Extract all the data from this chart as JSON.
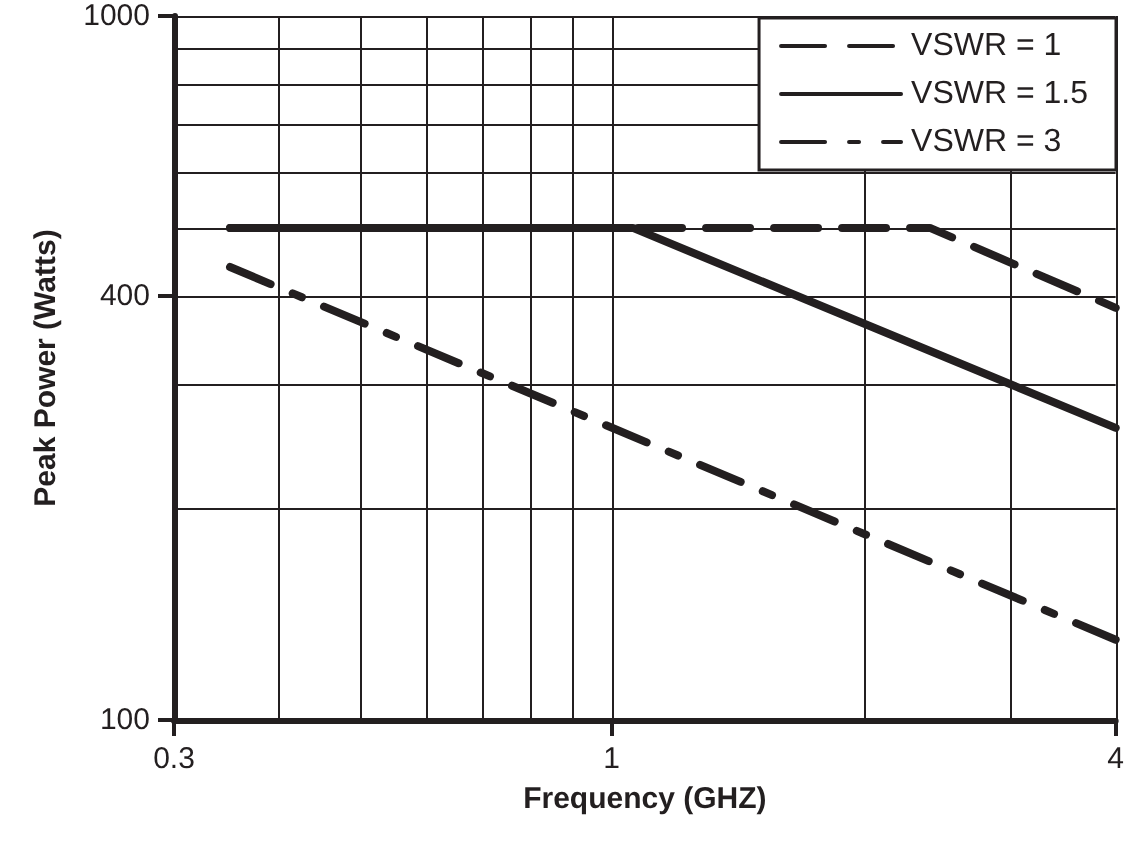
{
  "chart_data": {
    "type": "line",
    "xlabel": "Frequency (GHZ)",
    "ylabel": "Peak Power (Watts)",
    "log": "xy",
    "xlim": [
      0.3,
      4
    ],
    "ylim": [
      100,
      1000
    ],
    "xticks": [
      0.3,
      {
        "value": 0.4,
        "label": null
      },
      {
        "value": 0.5,
        "label": null
      },
      {
        "value": 0.6,
        "label": null
      },
      {
        "value": 0.7,
        "label": null
      },
      {
        "value": 0.8,
        "label": null
      },
      {
        "value": 0.9,
        "label": null
      },
      1,
      {
        "value": 2,
        "label": null
      },
      {
        "value": 3,
        "label": null
      },
      4
    ],
    "yticks": [
      100,
      {
        "value": 200,
        "label": null
      },
      {
        "value": 300,
        "label": null
      },
      400,
      {
        "value": 500,
        "label": null
      },
      {
        "value": 600,
        "label": null
      },
      {
        "value": 700,
        "label": null
      },
      {
        "value": 800,
        "label": null
      },
      {
        "value": 900,
        "label": null
      },
      1000
    ],
    "grid": true,
    "legend": "top right",
    "marker": "none",
    "series": [
      {
        "name": "VSWR = 1",
        "color": "#231f20",
        "line_style": "dashed",
        "x": [
          0.35,
          2.4,
          4
        ],
        "values": [
          500,
          500,
          385
        ]
      },
      {
        "name": "VSWR = 1.5",
        "color": "#231f20",
        "line_style": "solid",
        "x": [
          0.35,
          1.06,
          4
        ],
        "values": [
          500,
          500,
          260
        ]
      },
      {
        "name": "VSWR = 3",
        "color": "#231f20",
        "line_style": "dashdot",
        "x": [
          0.35,
          4
        ],
        "values": [
          440,
          130
        ]
      }
    ]
  }
}
